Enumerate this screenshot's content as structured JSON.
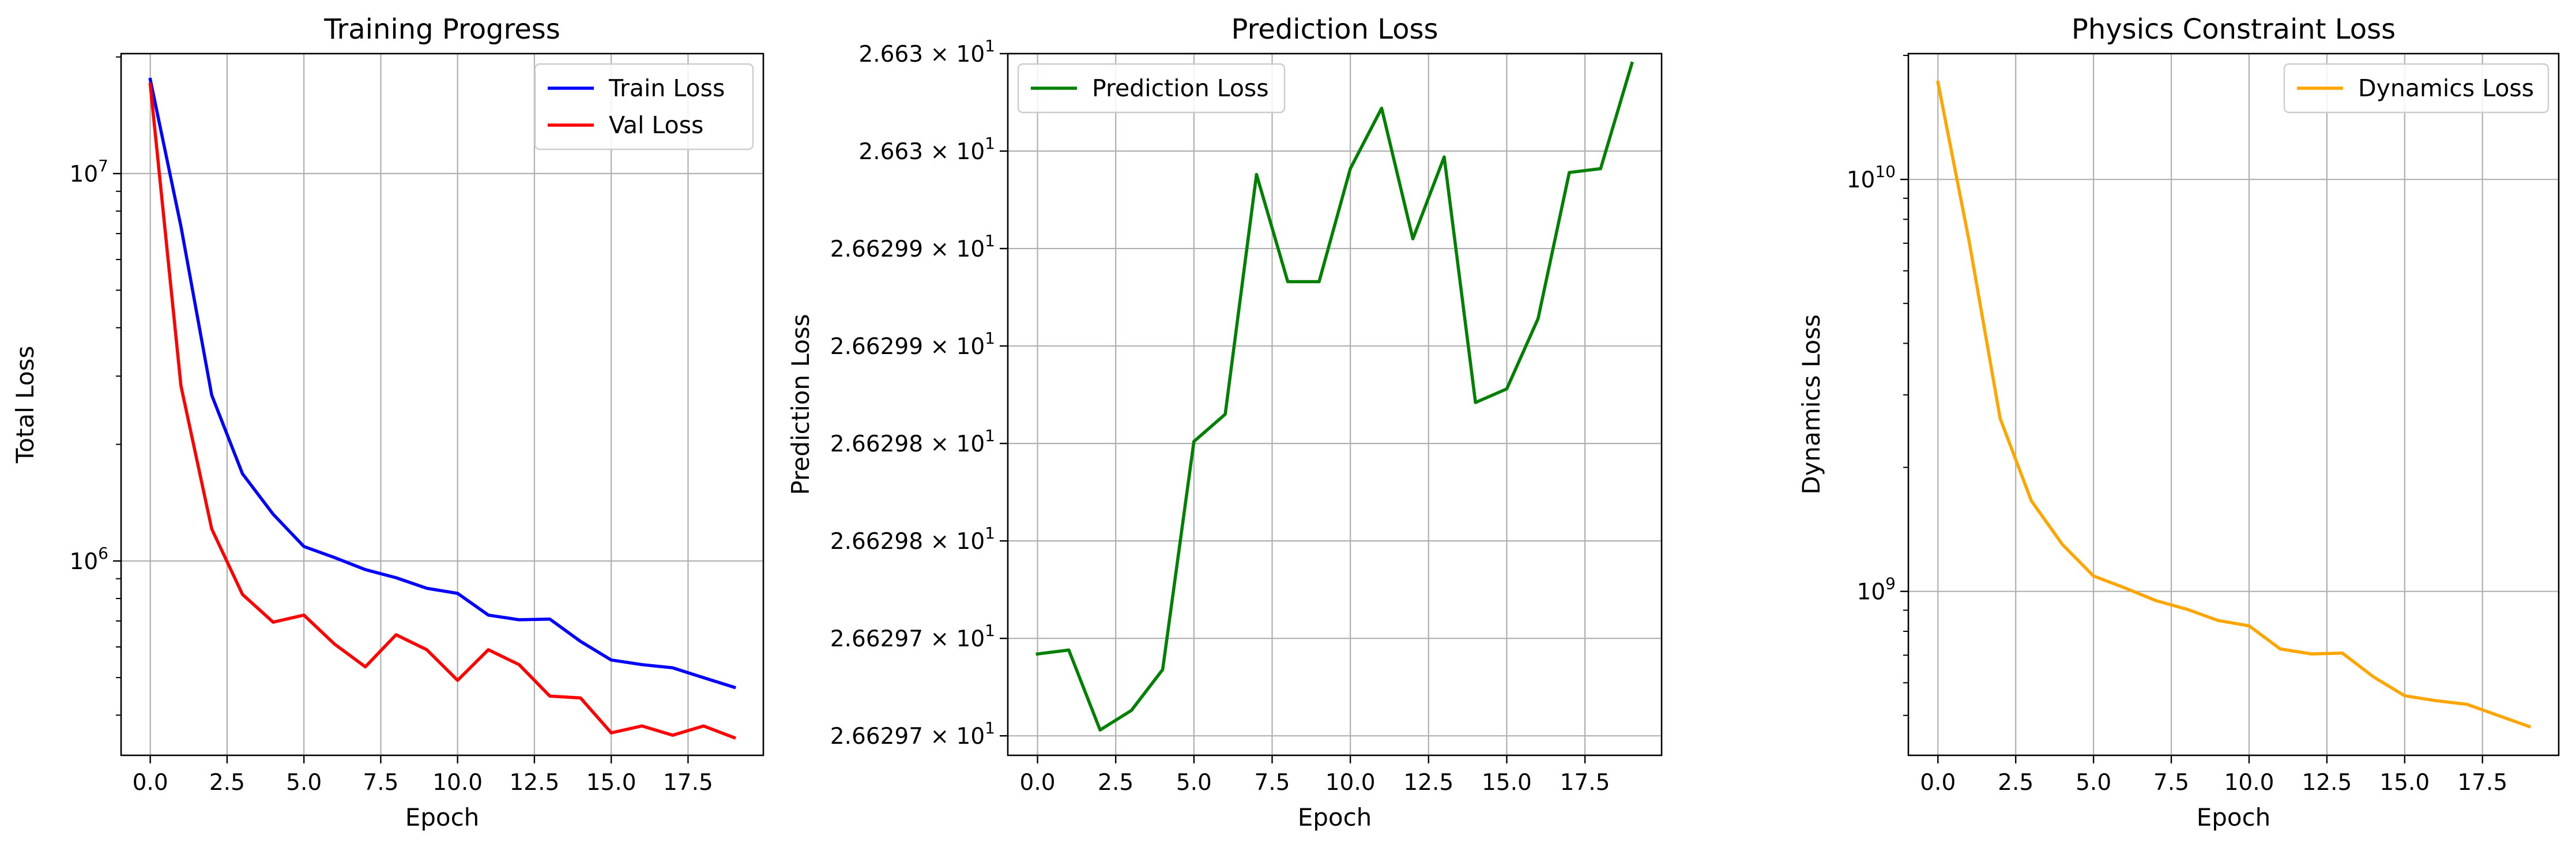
{
  "chart_data": [
    {
      "type": "line",
      "title": "Training Progress",
      "xlabel": "Epoch",
      "ylabel": "Total Loss",
      "yscale": "log",
      "xlim": [
        -0.95,
        19.95
      ],
      "ylim": [
        315000,
        20400000
      ],
      "x": [
        0,
        1,
        2,
        3,
        4,
        5,
        6,
        7,
        8,
        9,
        10,
        11,
        12,
        13,
        14,
        15,
        16,
        17,
        18,
        19
      ],
      "series": [
        {
          "name": "Train Loss",
          "color": "#0000ff",
          "values": [
            17500000,
            7300000,
            2680000,
            1680000,
            1320000,
            1090000,
            1020000,
            950000,
            905000,
            850000,
            825000,
            725000,
            705000,
            708000,
            620000,
            555000,
            540000,
            530000,
            500000,
            472000
          ]
        },
        {
          "name": "Val Loss",
          "color": "#ff0000",
          "values": [
            17000000,
            2830000,
            1210000,
            820000,
            695000,
            725000,
            610000,
            533000,
            645000,
            590000,
            492000,
            590000,
            540000,
            448000,
            443000,
            360000,
            375000,
            355000,
            375000,
            350000
          ]
        }
      ],
      "xticks": [
        0,
        2.5,
        5,
        7.5,
        10,
        12.5,
        15,
        17.5
      ],
      "xtick_labels": [
        "0.0",
        "2.5",
        "5.0",
        "7.5",
        "10.0",
        "12.5",
        "15.0",
        "17.5"
      ],
      "yticks": [
        10000000,
        1000000
      ],
      "ytick_labels": [
        {
          "base": "10",
          "exp": "7"
        },
        {
          "base": "10",
          "exp": "6"
        }
      ],
      "legend_position": "upper right",
      "grid": true
    },
    {
      "type": "line",
      "title": "Prediction Loss",
      "xlabel": "Epoch",
      "ylabel": "Prediction Loss",
      "yscale": "log",
      "xlim": [
        -0.95,
        19.95
      ],
      "ylim": [
        26.62967,
        26.63003
      ],
      "x": [
        0,
        1,
        2,
        3,
        4,
        5,
        6,
        7,
        8,
        9,
        10,
        11,
        12,
        13,
        14,
        15,
        16,
        17,
        18,
        19
      ],
      "series": [
        {
          "name": "Prediction Loss",
          "color": "#008000",
          "values": [
            26.629722,
            26.629724,
            26.629683,
            26.629693,
            26.629714,
            26.629831,
            26.629845,
            26.629968,
            26.629913,
            26.629913,
            26.629971,
            26.630002,
            26.629935,
            26.629977,
            26.629851,
            26.629858,
            26.629894,
            26.629969,
            26.629971,
            26.630025
          ]
        }
      ],
      "xticks": [
        0,
        2.5,
        5,
        7.5,
        10,
        12.5,
        15,
        17.5
      ],
      "xtick_labels": [
        "0.0",
        "2.5",
        "5.0",
        "7.5",
        "10.0",
        "12.5",
        "15.0",
        "17.5"
      ],
      "yticks": [
        26.63003,
        26.62998,
        26.62993,
        26.62988,
        26.62983,
        26.62978,
        26.62973,
        26.62968
      ],
      "ytick_labels": [
        {
          "mant": "2.663",
          "base": "10",
          "exp": "1"
        },
        {
          "mant": "2.663",
          "base": "10",
          "exp": "1"
        },
        {
          "mant": "2.66299",
          "base": "10",
          "exp": "1"
        },
        {
          "mant": "2.66299",
          "base": "10",
          "exp": "1"
        },
        {
          "mant": "2.66298",
          "base": "10",
          "exp": "1"
        },
        {
          "mant": "2.66298",
          "base": "10",
          "exp": "1"
        },
        {
          "mant": "2.66297",
          "base": "10",
          "exp": "1"
        },
        {
          "mant": "2.66297",
          "base": "10",
          "exp": "1"
        }
      ],
      "legend_position": "upper left",
      "grid": true
    },
    {
      "type": "line",
      "title": "Physics Constraint Loss",
      "xlabel": "Epoch",
      "ylabel": "Dynamics Loss",
      "yscale": "log",
      "xlim": [
        -0.95,
        19.95
      ],
      "ylim": [
        400000000,
        20200000000
      ],
      "x": [
        0,
        1,
        2,
        3,
        4,
        5,
        6,
        7,
        8,
        9,
        10,
        11,
        12,
        13,
        14,
        15,
        16,
        17,
        18,
        19
      ],
      "series": [
        {
          "name": "Dynamics Loss",
          "color": "#ffa500",
          "values": [
            17200000000,
            7100000000,
            2630000000,
            1660000000,
            1300000000,
            1090000000,
            1020000000,
            950000000,
            905000000,
            850000000,
            825000000,
            725000000,
            705000000,
            708000000,
            620000000,
            558000000,
            543000000,
            532000000,
            500000000,
            470000000
          ]
        }
      ],
      "xticks": [
        0,
        2.5,
        5,
        7.5,
        10,
        12.5,
        15,
        17.5
      ],
      "xtick_labels": [
        "0.0",
        "2.5",
        "5.0",
        "7.5",
        "10.0",
        "12.5",
        "15.0",
        "17.5"
      ],
      "yticks": [
        10000000000,
        1000000000
      ],
      "ytick_labels": [
        {
          "base": "10",
          "exp": "10"
        },
        {
          "base": "10",
          "exp": "9"
        }
      ],
      "legend_position": "upper right",
      "grid": true
    }
  ]
}
